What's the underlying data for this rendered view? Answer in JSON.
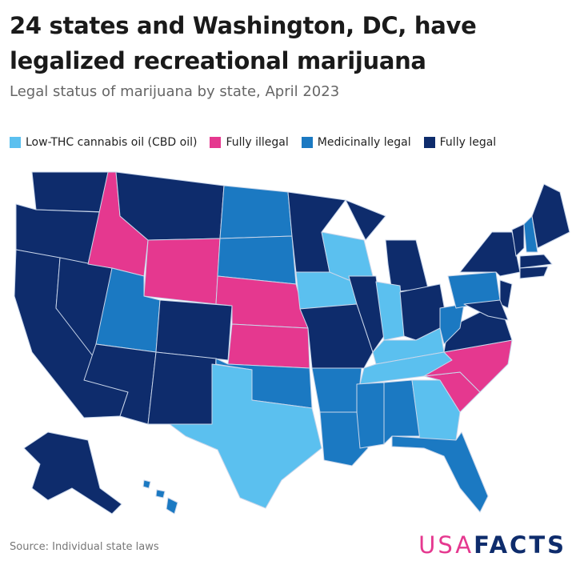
{
  "header": {
    "title": "24 states and Washington, DC, have legalized recreational marijuana",
    "subtitle": "Legal status of marijuana by state, April 2023"
  },
  "legend": [
    {
      "label": "Low-THC cannabis oil (CBD oil)",
      "color": "#5bc0ef"
    },
    {
      "label": "Fully illegal",
      "color": "#e5388f"
    },
    {
      "label": "Medicinally legal",
      "color": "#1b79c2"
    },
    {
      "label": "Fully legal",
      "color": "#0e2c6c"
    }
  ],
  "footer": {
    "source": "Source: Individual state laws",
    "logo": {
      "usa": "USA",
      "facts": "FACTS"
    }
  }
}
